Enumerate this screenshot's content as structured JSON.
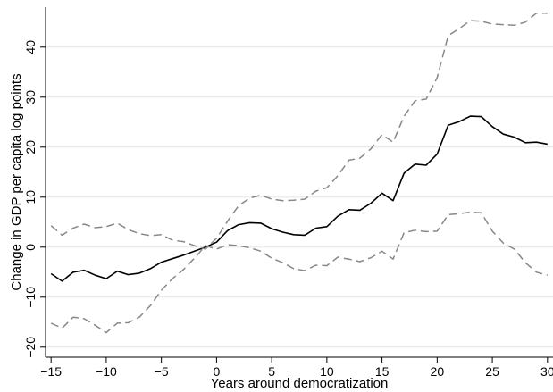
{
  "chart_data": {
    "type": "line",
    "xlabel": "Years around democratization",
    "ylabel": "Change in GDP per capita log points",
    "xlim": [
      -15.5,
      30.5
    ],
    "ylim": [
      -22,
      48
    ],
    "xticks": [
      -15,
      -10,
      -5,
      0,
      5,
      10,
      15,
      20,
      25,
      30
    ],
    "yticks": [
      -20,
      -10,
      0,
      10,
      20,
      30,
      40
    ],
    "x_tick_labels": [
      "−15",
      "−10",
      "−5",
      "0",
      "5",
      "10",
      "15",
      "20",
      "25",
      "30"
    ],
    "y_tick_labels": [
      "−20",
      "−10",
      "0",
      "10",
      "20",
      "30",
      "40"
    ],
    "grid": "horizontal",
    "x": [
      -15,
      -14,
      -13,
      -12,
      -11,
      -10,
      -9,
      -8,
      -7,
      -6,
      -5,
      -4,
      -3,
      -2,
      -1,
      0,
      1,
      2,
      3,
      4,
      5,
      6,
      7,
      8,
      9,
      10,
      11,
      12,
      13,
      14,
      15,
      16,
      17,
      18,
      19,
      20,
      21,
      22,
      23,
      24,
      25,
      26,
      27,
      28,
      29,
      30
    ],
    "series": [
      {
        "style": "solid",
        "color": "#000000",
        "values": [
          -5.3,
          -6.8,
          -5.0,
          -4.6,
          -5.6,
          -6.3,
          -4.8,
          -5.5,
          -5.2,
          -4.3,
          -3.0,
          -2.3,
          -1.6,
          -0.8,
          0.0,
          1.0,
          3.3,
          4.5,
          4.9,
          4.8,
          3.7,
          3.0,
          2.5,
          2.4,
          3.8,
          4.1,
          6.2,
          7.5,
          7.4,
          8.8,
          10.8,
          9.3,
          14.8,
          16.6,
          16.4,
          18.6,
          24.4,
          25.1,
          26.2,
          26.1,
          24.1,
          22.6,
          22.0,
          20.9,
          21.0,
          20.6
        ]
      },
      {
        "style": "dashed",
        "color": "#888888",
        "values": [
          4.3,
          2.4,
          3.8,
          4.6,
          3.9,
          4.1,
          4.8,
          3.5,
          2.7,
          2.3,
          2.5,
          1.4,
          1.1,
          0.3,
          -0.4,
          1.8,
          5.2,
          8.3,
          9.8,
          10.4,
          9.6,
          9.3,
          9.4,
          9.6,
          11.2,
          11.9,
          14.3,
          17.4,
          17.8,
          19.7,
          22.5,
          21.0,
          26.2,
          29.3,
          29.6,
          33.9,
          42.3,
          43.7,
          45.3,
          45.2,
          44.6,
          44.5,
          44.4,
          45.0,
          46.8,
          46.8
        ]
      },
      {
        "style": "dashed",
        "color": "#888888",
        "values": [
          -15.2,
          -16.2,
          -14.0,
          -14.3,
          -15.6,
          -17.1,
          -15.2,
          -15.1,
          -14.0,
          -11.7,
          -8.6,
          -6.3,
          -4.5,
          -2.2,
          0.3,
          -0.4,
          0.5,
          0.3,
          -0.1,
          -0.8,
          -2.2,
          -3.1,
          -4.3,
          -4.7,
          -3.6,
          -3.7,
          -2.0,
          -2.4,
          -2.9,
          -2.1,
          -0.8,
          -2.4,
          2.9,
          3.4,
          3.1,
          3.2,
          6.5,
          6.7,
          7.0,
          6.9,
          3.2,
          0.8,
          -0.4,
          -3.1,
          -5.0,
          -5.6
        ]
      }
    ]
  }
}
